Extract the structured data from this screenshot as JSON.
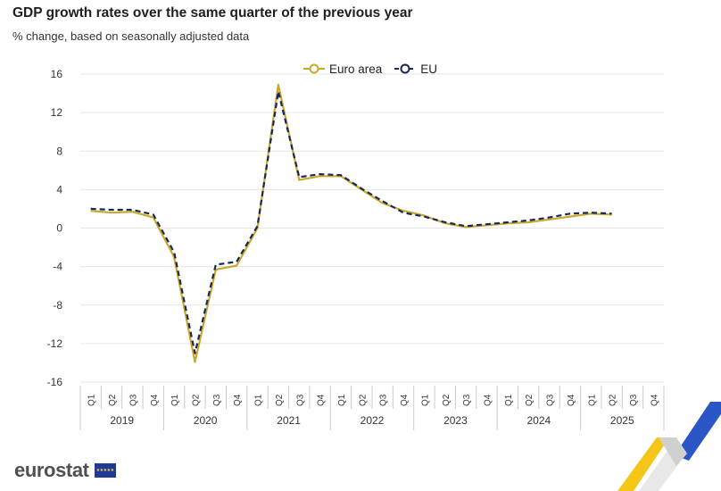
{
  "header": {
    "title": "GDP growth rates over the same quarter of the previous year",
    "subtitle": "% change, based on seasonally adjusted data"
  },
  "legend": {
    "items": [
      {
        "label": "Euro area",
        "color": "#c9a92c"
      },
      {
        "label": "EU",
        "color": "#17285a"
      }
    ]
  },
  "footer": {
    "brand": "eurostat"
  },
  "colors": {
    "euro_area": "#c9a92c",
    "eu": "#17285a",
    "grid": "#e6e6e6",
    "axis_text": "#333333",
    "accent_blue": "#2a56c6",
    "accent_yellow": "#f5c518"
  },
  "chart_data": {
    "type": "line",
    "title": "GDP growth rates over the same quarter of the previous year",
    "subtitle": "% change, based on seasonally adjusted data",
    "ylim": [
      -16,
      16
    ],
    "yticks": [
      16,
      12,
      8,
      4,
      0,
      -4,
      -8,
      -12,
      -16
    ],
    "grid": true,
    "legend_position": "top-center",
    "quarter_labels": [
      "Q1",
      "Q2",
      "Q3",
      "Q4"
    ],
    "years": [
      "2019",
      "2020",
      "2021",
      "2022",
      "2023",
      "2024",
      "2025"
    ],
    "categories": [
      "2019 Q1",
      "2019 Q2",
      "2019 Q3",
      "2019 Q4",
      "2020 Q1",
      "2020 Q2",
      "2020 Q3",
      "2020 Q4",
      "2021 Q1",
      "2021 Q2",
      "2021 Q3",
      "2021 Q4",
      "2022 Q1",
      "2022 Q2",
      "2022 Q3",
      "2022 Q4",
      "2023 Q1",
      "2023 Q2",
      "2023 Q3",
      "2023 Q4",
      "2024 Q1",
      "2024 Q2",
      "2024 Q3",
      "2024 Q4",
      "2025 Q1",
      "2025 Q2",
      "2025 Q3",
      "2025 Q4"
    ],
    "series": [
      {
        "name": "Euro area",
        "color": "#c9a92c",
        "style": "solid",
        "values": [
          1.8,
          1.6,
          1.7,
          1.1,
          -3.0,
          -13.9,
          -4.3,
          -3.9,
          0.0,
          14.9,
          5.0,
          5.4,
          5.4,
          4.0,
          2.6,
          1.8,
          1.3,
          0.5,
          0.1,
          0.3,
          0.5,
          0.6,
          0.9,
          1.2,
          1.5,
          1.4,
          null,
          null
        ]
      },
      {
        "name": "EU",
        "color": "#17285a",
        "style": "dashed",
        "values": [
          2.0,
          1.9,
          1.9,
          1.4,
          -2.5,
          -13.0,
          -3.8,
          -3.5,
          0.2,
          14.2,
          5.3,
          5.6,
          5.5,
          4.1,
          2.8,
          1.6,
          1.2,
          0.6,
          0.2,
          0.4,
          0.6,
          0.8,
          1.1,
          1.5,
          1.6,
          1.5,
          null,
          null
        ]
      }
    ]
  }
}
